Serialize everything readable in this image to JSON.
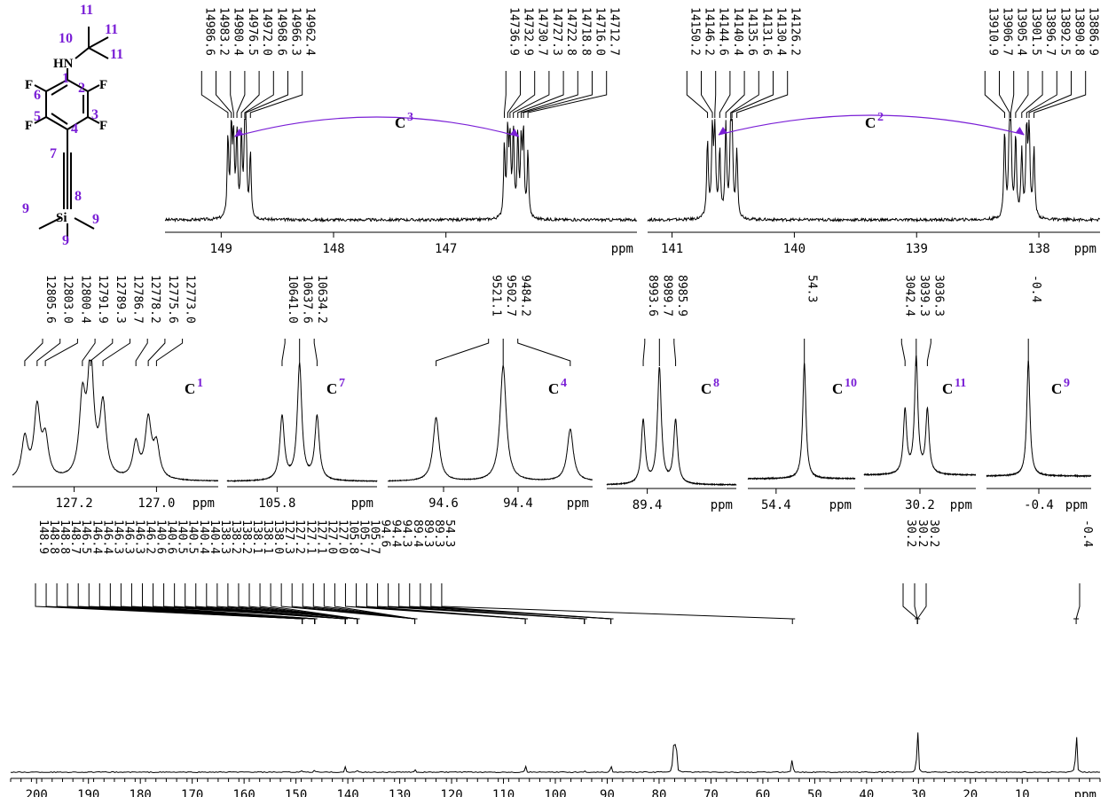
{
  "molecule": {
    "atoms": {
      "N": "HN",
      "Si": "Si",
      "F": "F"
    },
    "numbers": [
      "1",
      "2",
      "3",
      "4",
      "5",
      "6",
      "7",
      "8",
      "9",
      "10",
      "11"
    ]
  },
  "chart_data": [
    {
      "id": "c3",
      "type": "line",
      "unit": "ppm",
      "label_main": "C",
      "label_sup": "3",
      "xlim": [
        149.5,
        145.3
      ],
      "ticks": [
        "149",
        "148",
        "147"
      ],
      "tick_values": [
        149,
        148,
        147
      ],
      "peak_labels": [
        "14986.6",
        "14983.2",
        "14980.4",
        "14976.5",
        "14972.0",
        "14968.6",
        "14966.3",
        "14962.4",
        "14736.9",
        "14732.9",
        "14730.7",
        "14727.3",
        "14722.8",
        "14718.8",
        "14716.0",
        "14712.7"
      ],
      "peaks": [
        148.94,
        148.91,
        148.89,
        148.86,
        148.82,
        148.79,
        148.78,
        148.74,
        146.48,
        146.45,
        146.43,
        146.4,
        146.36,
        146.33,
        146.31,
        146.27
      ],
      "intensities": [
        0.85,
        0.95,
        0.82,
        0.9,
        0.88,
        0.75,
        0.9,
        0.7,
        0.75,
        0.9,
        0.8,
        0.92,
        0.85,
        0.78,
        0.88,
        0.7
      ]
    },
    {
      "id": "c2",
      "type": "line",
      "unit": "ppm",
      "label_main": "C",
      "label_sup": "2",
      "xlim": [
        141.2,
        137.5
      ],
      "ticks": [
        "141",
        "140",
        "139",
        "138"
      ],
      "tick_values": [
        141,
        140,
        139,
        138
      ],
      "peak_labels": [
        "14150.2",
        "14146.2",
        "14144.6",
        "14140.4",
        "14135.6",
        "14131.6",
        "14130.4",
        "14126.2",
        "13910.9",
        "13906.7",
        "13905.4",
        "13901.5",
        "13896.7",
        "13892.5",
        "13890.8",
        "13886.9"
      ],
      "peaks": [
        140.71,
        140.67,
        140.65,
        140.61,
        140.56,
        140.52,
        140.51,
        140.47,
        138.28,
        138.24,
        138.23,
        138.19,
        138.14,
        138.1,
        138.08,
        138.04
      ],
      "intensities": [
        0.8,
        0.9,
        0.92,
        0.7,
        0.95,
        0.85,
        0.88,
        0.7,
        0.9,
        0.95,
        0.75,
        0.85,
        0.7,
        0.9,
        0.95,
        0.72
      ]
    },
    {
      "id": "c1",
      "type": "line",
      "unit": "ppm",
      "label_main": "C",
      "label_sup": "1",
      "xlim": [
        127.35,
        126.85
      ],
      "ticks": [
        "127.2",
        "127.0"
      ],
      "tick_values": [
        127.2,
        127.0
      ],
      "peak_labels": [
        "12805.6",
        "12803.0",
        "12800.4",
        "12791.9",
        "12789.3",
        "12786.7",
        "12778.2",
        "12775.6",
        "12773.0"
      ],
      "peaks": [
        127.32,
        127.29,
        127.27,
        127.18,
        127.16,
        127.13,
        127.05,
        127.02,
        127.0
      ],
      "intensities": [
        0.35,
        0.6,
        0.33,
        0.65,
        1.0,
        0.62,
        0.3,
        0.5,
        0.28
      ]
    },
    {
      "id": "c7",
      "type": "line",
      "unit": "ppm",
      "label_main": "C",
      "label_sup": "7",
      "xlim": [
        105.9,
        105.6
      ],
      "ticks": [
        "105.8"
      ],
      "tick_values": [
        105.8
      ],
      "peak_labels": [
        "10641.0",
        "10637.6",
        "10634.2"
      ],
      "peaks": [
        105.79,
        105.755,
        105.72
      ],
      "intensities": [
        0.55,
        1.0,
        0.55
      ]
    },
    {
      "id": "c4",
      "type": "line",
      "unit": "ppm",
      "label_main": "C",
      "label_sup": "4",
      "xlim": [
        94.75,
        94.2
      ],
      "ticks": [
        "94.6",
        "94.4"
      ],
      "tick_values": [
        94.6,
        94.4
      ],
      "peak_labels": [
        "9521.1",
        "9502.7",
        "9484.2"
      ],
      "peaks": [
        94.62,
        94.44,
        94.26
      ],
      "intensities": [
        0.55,
        1.0,
        0.45
      ]
    },
    {
      "id": "c8",
      "type": "line",
      "unit": "ppm",
      "label_main": "C",
      "label_sup": "8",
      "xlim": [
        89.5,
        89.18
      ],
      "ticks": [
        "89.4"
      ],
      "tick_values": [
        89.4
      ],
      "peak_labels": [
        "8993.6",
        "8989.7",
        "8985.9"
      ],
      "peaks": [
        89.41,
        89.37,
        89.33
      ],
      "intensities": [
        0.55,
        1.0,
        0.55
      ]
    },
    {
      "id": "c10",
      "type": "line",
      "unit": "ppm",
      "label_main": "C",
      "label_sup": "10",
      "xlim": [
        54.5,
        54.12
      ],
      "ticks": [
        "54.4"
      ],
      "tick_values": [
        54.4
      ],
      "peak_labels": [
        "54.3"
      ],
      "peaks": [
        54.3
      ],
      "intensities": [
        1.0
      ]
    },
    {
      "id": "c11",
      "type": "line",
      "unit": "ppm",
      "label_main": "C",
      "label_sup": "11",
      "xlim": [
        30.35,
        30.05
      ],
      "ticks": [
        "30.2"
      ],
      "tick_values": [
        30.2
      ],
      "peak_labels": [
        "3042.4",
        "3039.3",
        "3036.3"
      ],
      "peaks": [
        30.24,
        30.21,
        30.18
      ],
      "intensities": [
        0.55,
        1.0,
        0.55
      ]
    },
    {
      "id": "c9",
      "type": "line",
      "unit": "ppm",
      "label_main": "C",
      "label_sup": "9",
      "xlim": [
        -0.25,
        -0.55
      ],
      "ticks": [
        "-0.4"
      ],
      "tick_values": [
        -0.4
      ],
      "peak_labels": [
        "-0.4"
      ],
      "peaks": [
        -0.37
      ],
      "intensities": [
        1.0
      ]
    },
    {
      "id": "full",
      "type": "line",
      "unit": "ppm",
      "xlim": [
        205,
        -5
      ],
      "ticks": [
        "200",
        "190",
        "180",
        "170",
        "160",
        "150",
        "140",
        "130",
        "120",
        "110",
        "100",
        "90",
        "80",
        "70",
        "60",
        "50",
        "40",
        "30",
        "20",
        "10"
      ],
      "tick_values": [
        200,
        190,
        180,
        170,
        160,
        150,
        140,
        130,
        120,
        110,
        100,
        90,
        80,
        70,
        60,
        50,
        40,
        30,
        20,
        10
      ],
      "peak_labels": [
        "148.9",
        "148.8",
        "148.8",
        "148.7",
        "146.5",
        "146.4",
        "146.4",
        "146.3",
        "146.3",
        "146.3",
        "146.2",
        "140.6",
        "140.6",
        "140.5",
        "140.5",
        "140.4",
        "140.4",
        "138.3",
        "138.2",
        "138.2",
        "138.1",
        "138.1",
        "138.0",
        "127.3",
        "127.2",
        "127.1",
        "127.1",
        "127.0",
        "127.0",
        "105.8",
        "105.7",
        "105.7",
        "94.6",
        "94.4",
        "94.3",
        "89.4",
        "89.3",
        "89.3",
        "54.3",
        "30.2",
        "30.2",
        "30.2",
        "-0.4"
      ],
      "peak_groups": [
        {
          "labels": [
            0,
            3
          ],
          "ppm": 148.8
        },
        {
          "labels": [
            4,
            10
          ],
          "ppm": 146.4
        },
        {
          "labels": [
            11,
            16
          ],
          "ppm": 140.5
        },
        {
          "labels": [
            17,
            22
          ],
          "ppm": 138.2
        },
        {
          "labels": [
            23,
            28
          ],
          "ppm": 127.1
        },
        {
          "labels": [
            29,
            31
          ],
          "ppm": 105.8
        },
        {
          "labels": [
            32,
            34
          ],
          "ppm": 94.4
        },
        {
          "labels": [
            35,
            37
          ],
          "ppm": 89.3
        },
        {
          "labels": [
            38,
            38
          ],
          "ppm": 54.3
        },
        {
          "labels": [
            39,
            41
          ],
          "ppm": 30.2
        },
        {
          "labels": [
            42,
            42
          ],
          "ppm": -0.4
        }
      ],
      "peaks": [
        148.8,
        146.4,
        140.5,
        138.2,
        127.1,
        105.8,
        94.4,
        89.3,
        77.3,
        77.0,
        76.7,
        54.3,
        30.2,
        -0.4
      ],
      "intensities": [
        0.04,
        0.04,
        0.035,
        0.04,
        0.06,
        0.14,
        0.03,
        0.13,
        0.49,
        0.5,
        0.49,
        0.3,
        1.0,
        0.9
      ]
    }
  ]
}
